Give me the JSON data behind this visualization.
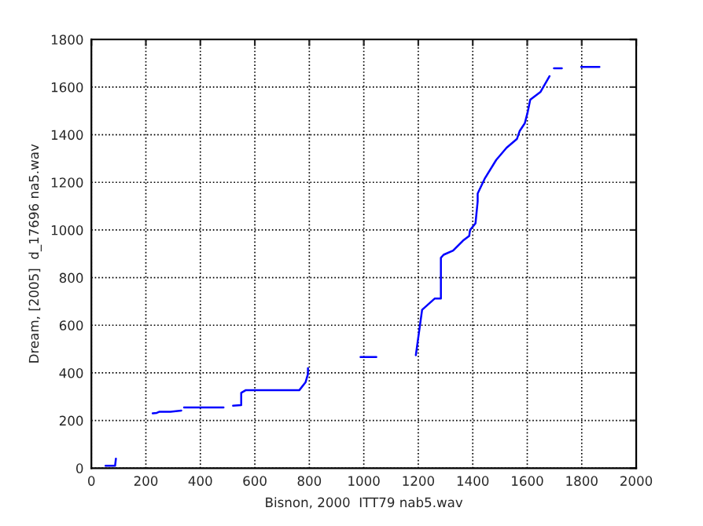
{
  "chart_data": {
    "type": "line",
    "xlabel": "Bisnon, 2000  ITT79 nab5.wav",
    "ylabel": "Dream, [2005]  d_17696 na5.wav",
    "x": [
      52,
      87,
      90,
      null,
      225,
      240,
      250,
      290,
      330,
      null,
      340,
      485,
      null,
      520,
      550,
      550,
      566,
      763,
      786,
      795,
      795,
      null,
      988,
      1046,
      null,
      1191,
      1214,
      1260,
      1283,
      1283,
      1293,
      1328,
      1364,
      1387,
      1390,
      1410,
      1418,
      1418,
      1445,
      1486,
      1524,
      1562,
      1572,
      1591,
      1601,
      1611,
      1649,
      1682,
      null,
      1698,
      1727,
      null,
      1798,
      1865
    ],
    "series": [
      {
        "color": "#0000ff",
        "values": [
          10,
          10,
          40,
          null,
          230,
          232,
          237,
          237,
          242,
          null,
          255,
          255,
          null,
          262,
          265,
          316,
          327,
          327,
          360,
          395,
          420,
          null,
          467,
          467,
          null,
          474,
          665,
          712,
          712,
          883,
          896,
          914,
          955,
          975,
          1000,
          1028,
          1120,
          1153,
          1218,
          1294,
          1345,
          1382,
          1415,
          1448,
          1492,
          1547,
          1580,
          1646,
          null,
          1679,
          1679,
          null,
          1685,
          1685
        ]
      }
    ],
    "xlim": [
      0,
      2000
    ],
    "xticks": [
      0,
      200,
      400,
      600,
      800,
      1000,
      1200,
      1400,
      1600,
      1800,
      2000
    ],
    "ylim": [
      0,
      1800
    ],
    "yticks": [
      0,
      200,
      400,
      600,
      800,
      1000,
      1200,
      1400,
      1600,
      1800
    ],
    "grid": true,
    "line_style": "solid",
    "marker": "none"
  }
}
